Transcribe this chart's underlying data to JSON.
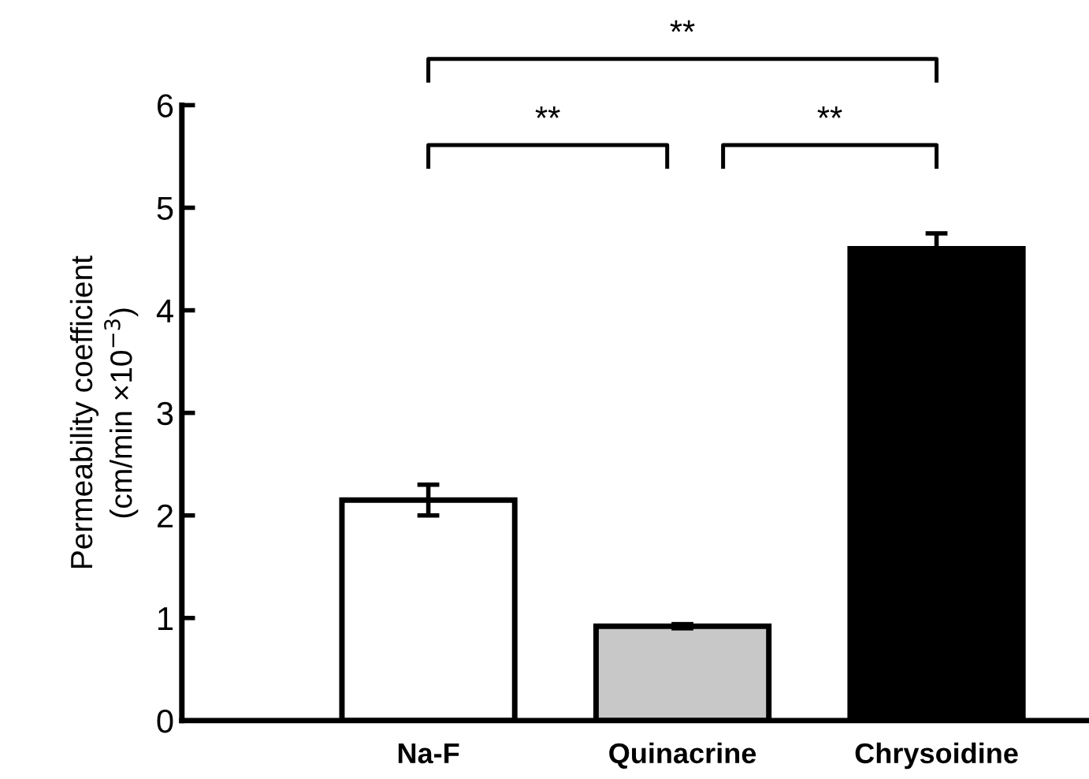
{
  "chart_data": {
    "type": "bar",
    "ylabel": "Permeability coefficient\n(cm/min ×10$^{−3}$)",
    "categories": [
      "Na-F",
      "Quinacrine",
      "Chrysoidine"
    ],
    "values": [
      2.15,
      0.92,
      4.6
    ],
    "errors": [
      0.15,
      0.02,
      0.15
    ],
    "colors": [
      "#ffffff",
      "#c8c8c8",
      "#000000"
    ],
    "ylim": [
      0,
      6
    ],
    "yticks": [
      0,
      1,
      2,
      3,
      4,
      5,
      6
    ],
    "annotations": [
      "**",
      "**",
      "**"
    ]
  }
}
